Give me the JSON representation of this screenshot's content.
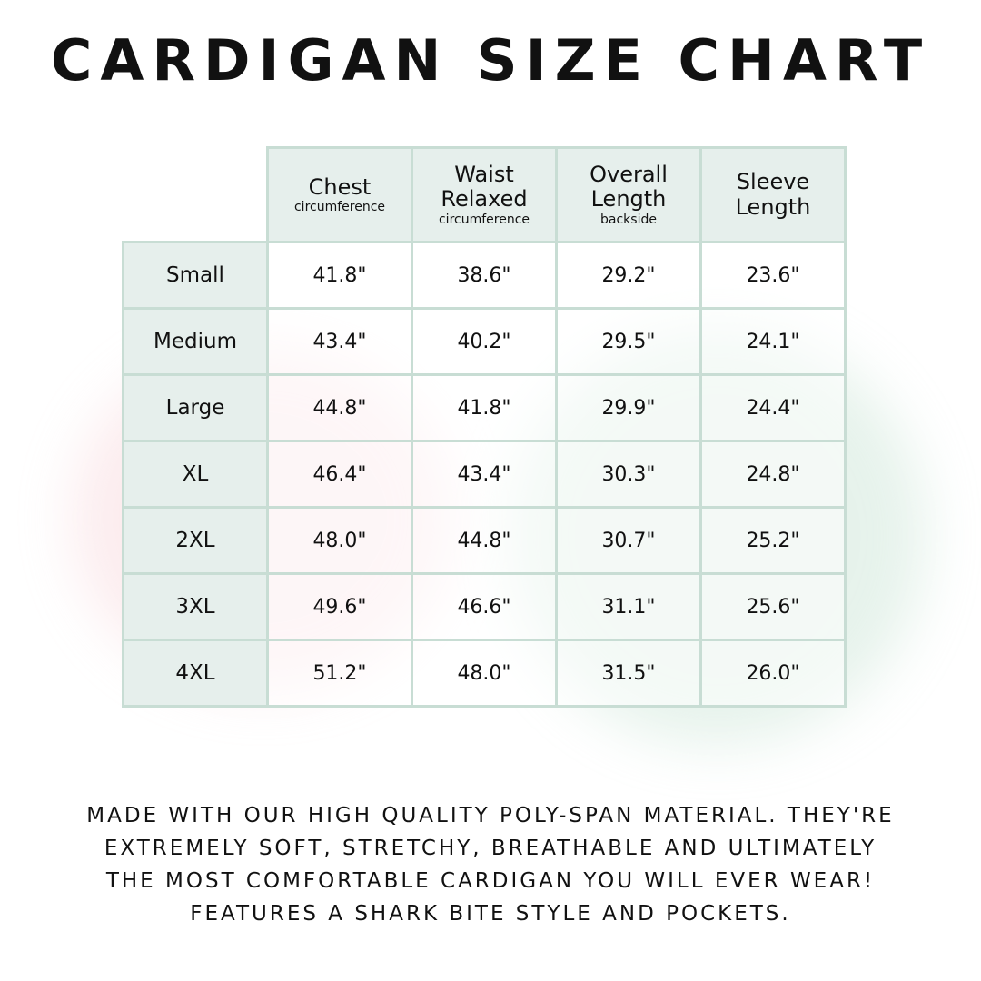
{
  "title": "CARDIGAN SIZE CHART",
  "colors": {
    "header_bg": "#e6efec",
    "border": "#c8ddd4"
  },
  "columns": [
    {
      "label": "Chest",
      "sub": "circumference"
    },
    {
      "label": "Waist Relaxed",
      "sub": "circumference"
    },
    {
      "label": "Overall Length",
      "sub": "backside"
    },
    {
      "label": "Sleeve Length",
      "sub": ""
    }
  ],
  "rows": [
    {
      "size": "Small",
      "values": [
        "41.8\"",
        "38.6\"",
        "29.2\"",
        "23.6\""
      ]
    },
    {
      "size": "Medium",
      "values": [
        "43.4\"",
        "40.2\"",
        "29.5\"",
        "24.1\""
      ]
    },
    {
      "size": "Large",
      "values": [
        "44.8\"",
        "41.8\"",
        "29.9\"",
        "24.4\""
      ]
    },
    {
      "size": "XL",
      "values": [
        "46.4\"",
        "43.4\"",
        "30.3\"",
        "24.8\""
      ]
    },
    {
      "size": "2XL",
      "values": [
        "48.0\"",
        "44.8\"",
        "30.7\"",
        "25.2\""
      ]
    },
    {
      "size": "3XL",
      "values": [
        "49.6\"",
        "46.6\"",
        "31.1\"",
        "25.6\""
      ]
    },
    {
      "size": "4XL",
      "values": [
        "51.2\"",
        "48.0\"",
        "31.5\"",
        "26.0\""
      ]
    }
  ],
  "description": [
    "Made with our high quality poly-span material. They're",
    "extremely soft, stretchy, breathable and ultimately",
    "the most comfortable cardigan you will ever wear!",
    "Features a shark bite style and pockets."
  ]
}
